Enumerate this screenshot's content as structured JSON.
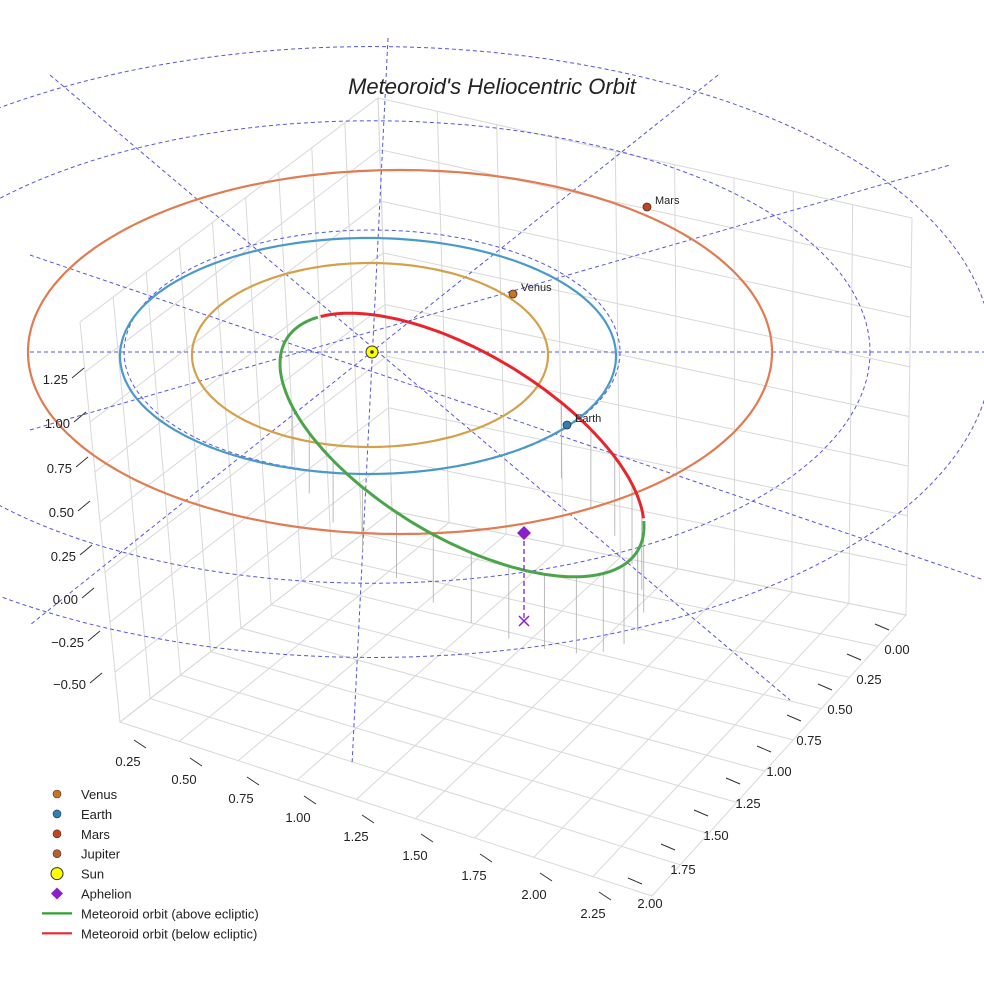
{
  "chart_data": {
    "type": "3d-orbit",
    "title": "Meteoroid's Heliocentric Orbit",
    "x_ticks": [
      "0.25",
      "0.50",
      "0.75",
      "1.00",
      "1.25",
      "1.50",
      "1.75",
      "2.00",
      "2.25"
    ],
    "y_ticks": [
      "0.00",
      "0.25",
      "0.50",
      "0.75",
      "1.00",
      "1.25",
      "1.50",
      "1.75",
      "2.00"
    ],
    "z_ticks": [
      "−0.50",
      "−0.25",
      "0.00",
      "0.25",
      "0.50",
      "0.75",
      "1.00",
      "1.25"
    ],
    "bodies": [
      {
        "name": "Venus",
        "color": "#c9751f"
      },
      {
        "name": "Earth",
        "color": "#2c7fb8"
      },
      {
        "name": "Mars",
        "color": "#c4451c"
      }
    ],
    "orbits": [
      {
        "name": "Venus orbit",
        "color": "#d4a14a"
      },
      {
        "name": "Earth orbit",
        "color": "#4a9ac9"
      },
      {
        "name": "Mars orbit",
        "color": "#e07b52"
      }
    ],
    "legend": [
      {
        "label": "Venus",
        "marker": "circle",
        "color": "#c9751f"
      },
      {
        "label": "Earth",
        "marker": "circle",
        "color": "#2c7fb8"
      },
      {
        "label": "Mars",
        "marker": "circle",
        "color": "#c4451c"
      },
      {
        "label": "Jupiter",
        "marker": "circle",
        "color": "#b5602e"
      },
      {
        "label": "Sun",
        "marker": "circle-large",
        "color": "#ffff00"
      },
      {
        "label": "Aphelion",
        "marker": "diamond",
        "color": "#8a1fc9"
      },
      {
        "label": "Meteoroid orbit (above ecliptic)",
        "marker": "line",
        "color": "#2ca02c"
      },
      {
        "label": "Meteoroid orbit (below ecliptic)",
        "marker": "line",
        "color": "#e8252b"
      }
    ],
    "colors": {
      "grid": "#d8d8d8",
      "guides": "#5555dd",
      "stems": "#aaaaaa",
      "aphelion": "#8a1fc9",
      "sun": "#ffff00",
      "above": "#4aa54a",
      "below": "#e8252b"
    }
  }
}
